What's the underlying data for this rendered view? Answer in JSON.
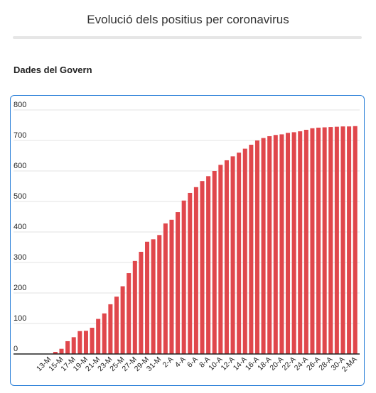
{
  "header": {
    "title": "Evolució dels positius per coronavirus",
    "subtitle": "Dades del Govern"
  },
  "chart_data": {
    "type": "bar",
    "title": "Evolució dels positius per coronavirus",
    "subtitle": "Dades del Govern",
    "xlabel": "",
    "ylabel": "",
    "ylim": [
      0,
      800
    ],
    "yticks": [
      0,
      100,
      200,
      300,
      400,
      500,
      600,
      700,
      800
    ],
    "grid": true,
    "bar_color": "#e0474c",
    "categories": [
      "13-M",
      "14-M",
      "15-M",
      "16-M",
      "17-M",
      "18-M",
      "19-M",
      "20-M",
      "21-M",
      "22-M",
      "23-M",
      "24-M",
      "25-M",
      "26-M",
      "27-M",
      "28-M",
      "29-M",
      "30-M",
      "31-M",
      "1-A",
      "2-A",
      "3-A",
      "4-A",
      "5-A",
      "6-A",
      "7-A",
      "8-A",
      "9-A",
      "10-A",
      "11-A",
      "12-A",
      "13-A",
      "14-A",
      "15-A",
      "16-A",
      "17-A",
      "18-A",
      "19-A",
      "20-A",
      "21-A",
      "22-A",
      "23-A",
      "24-A",
      "25-A",
      "26-A",
      "27-A",
      "28-A",
      "29-A",
      "30-A",
      "1-MA",
      "2-MA"
    ],
    "tick_labels": [
      "13-M",
      "",
      "15-M",
      "",
      "17-M",
      "",
      "19-M",
      "",
      "21-M",
      "",
      "23-M",
      "",
      "25-M",
      "",
      "27-M",
      "",
      "29-M",
      "",
      "31-M",
      "",
      "2-A",
      "",
      "4-A",
      "",
      "6-A",
      "",
      "8-A",
      "",
      "10-A",
      "",
      "12-A",
      "",
      "14-A",
      "",
      "16-A",
      "",
      "18-A",
      "",
      "20-A",
      "",
      "22-A",
      "",
      "24-A",
      "",
      "26-A",
      "",
      "28-A",
      "",
      "30-A",
      "",
      "2-MA"
    ],
    "values": [
      1,
      7,
      17,
      42,
      55,
      75,
      76,
      86,
      115,
      133,
      163,
      188,
      222,
      265,
      305,
      335,
      368,
      376,
      390,
      428,
      440,
      465,
      503,
      528,
      547,
      567,
      583,
      600,
      620,
      635,
      648,
      660,
      673,
      686,
      700,
      708,
      714,
      718,
      720,
      725,
      727,
      730,
      735,
      740,
      742,
      743,
      744,
      745,
      746,
      746,
      747
    ]
  }
}
